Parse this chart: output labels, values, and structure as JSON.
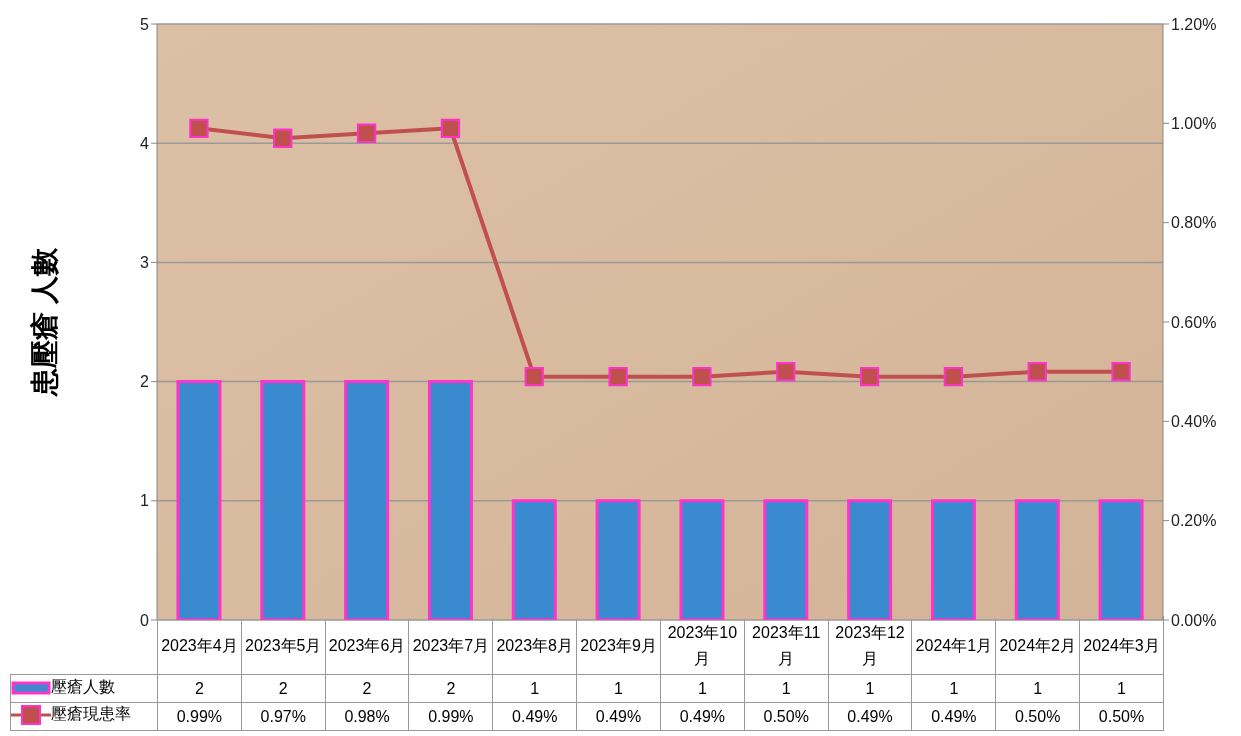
{
  "chart_data": {
    "type": "bar",
    "ylabel": "患壓瘡 人數",
    "categories": [
      "2023年4月",
      "2023年5月",
      "2023年6月",
      "2023年7月",
      "2023年8月",
      "2023年9月",
      "2023年10月",
      "2023年11月",
      "2023年12月",
      "2024年1月",
      "2024年2月",
      "2024年3月"
    ],
    "series": [
      {
        "name": "壓瘡人數",
        "color": "#3a8ad0",
        "values": [
          2,
          2,
          2,
          2,
          1,
          1,
          1,
          1,
          1,
          1,
          1,
          1
        ],
        "value_labels": [
          "2",
          "2",
          "2",
          "2",
          "1",
          "1",
          "1",
          "1",
          "1",
          "1",
          "1",
          "1"
        ]
      },
      {
        "name": "壓瘡現患率",
        "type": "line",
        "axis": "y2",
        "color": "#c0504d",
        "marker": "square",
        "line_style": "solid",
        "values": [
          0.99,
          0.97,
          0.98,
          0.99,
          0.49,
          0.49,
          0.49,
          0.5,
          0.49,
          0.49,
          0.5,
          0.5
        ],
        "value_labels": [
          "0.99%",
          "0.97%",
          "0.98%",
          "0.99%",
          "0.49%",
          "0.49%",
          "0.49%",
          "0.50%",
          "0.49%",
          "0.49%",
          "0.50%",
          "0.50%"
        ]
      }
    ],
    "ylim": [
      0,
      5
    ],
    "yticks": [
      0,
      1,
      2,
      3,
      4,
      5
    ],
    "y2lim": [
      0,
      1.2
    ],
    "y2ticks": [
      {
        "value": 0,
        "label": "0.00%"
      },
      {
        "value": 0.2,
        "label": "0.20%"
      },
      {
        "value": 0.4,
        "label": "0.40%"
      },
      {
        "value": 0.6,
        "label": "0.60%"
      },
      {
        "value": 0.8,
        "label": "0.80%"
      },
      {
        "value": 1.0,
        "label": "1.00%"
      },
      {
        "value": 1.2,
        "label": "1.20%"
      }
    ],
    "grid": "y",
    "legend": "bottom"
  }
}
